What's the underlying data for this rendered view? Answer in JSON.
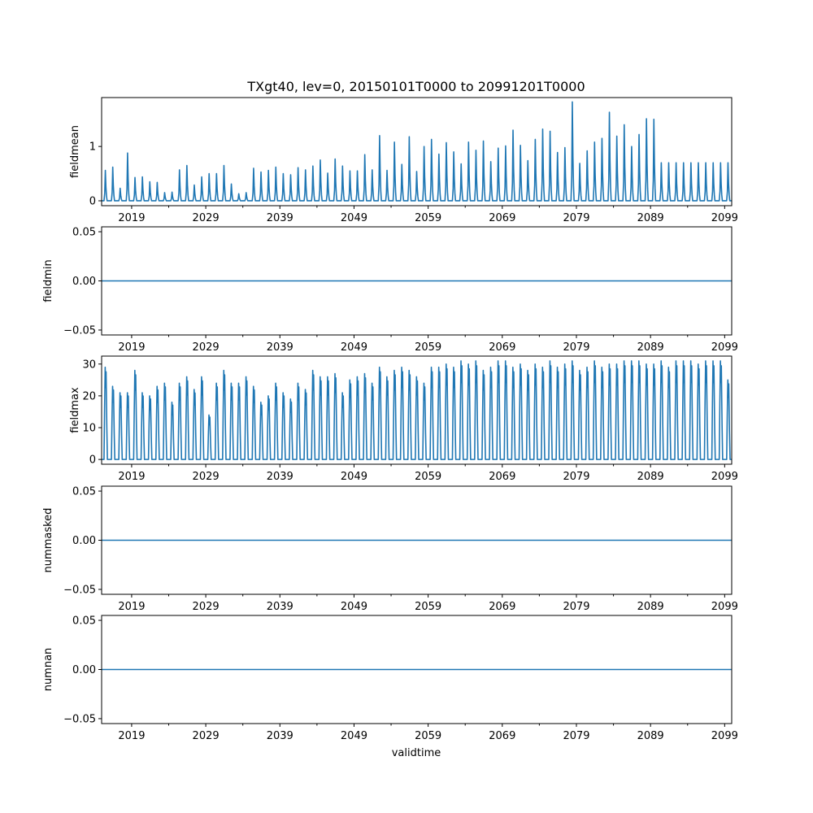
{
  "figure": {
    "title": "TXgt40, lev=0, 20150101T0000 to 20991201T0000",
    "xlabel": "validtime"
  },
  "colors": {
    "series": "#1f77b4",
    "axis": "#000000",
    "background": "#ffffff"
  },
  "chart_data": [
    {
      "type": "line",
      "ylabel": "fieldmean",
      "ylim": [
        -0.09,
        1.9
      ],
      "yticks": [
        0,
        1
      ],
      "ytick_labels": [
        "0",
        "1"
      ],
      "xlim": [
        2015.0,
        2100.0
      ],
      "xticks": [
        2019,
        2029,
        2039,
        2049,
        2059,
        2069,
        2079,
        2089,
        2099
      ],
      "xtick_labels": [
        "2019",
        "2029",
        "2039",
        "2049",
        "2059",
        "2069",
        "2079",
        "2089",
        "2099"
      ],
      "series": [
        {
          "name": "fieldmean",
          "pattern": "annual_summer_peaks",
          "baseline": 0,
          "years": [
            2015,
            2016,
            2017,
            2018,
            2019,
            2020,
            2021,
            2022,
            2023,
            2024,
            2025,
            2026,
            2027,
            2028,
            2029,
            2030,
            2031,
            2032,
            2033,
            2034,
            2035,
            2036,
            2037,
            2038,
            2039,
            2040,
            2041,
            2042,
            2043,
            2044,
            2045,
            2046,
            2047,
            2048,
            2049,
            2050,
            2051,
            2052,
            2053,
            2054,
            2055,
            2056,
            2057,
            2058,
            2059,
            2060,
            2061,
            2062,
            2063,
            2064,
            2065,
            2066,
            2067,
            2068,
            2069,
            2070,
            2071,
            2072,
            2073,
            2074,
            2075,
            2076,
            2077,
            2078,
            2079,
            2080,
            2081,
            2082,
            2083,
            2084,
            2085,
            2086,
            2087,
            2088,
            2089,
            2090,
            2091,
            2092,
            2093,
            2094,
            2095,
            2096,
            2097,
            2098,
            2099
          ],
          "peaks": [
            0.56,
            0.62,
            0.23,
            0.88,
            0.43,
            0.44,
            0.35,
            0.34,
            0.15,
            0.16,
            0.57,
            0.65,
            0.29,
            0.44,
            0.5,
            0.5,
            0.65,
            0.31,
            0.13,
            0.15,
            0.6,
            0.53,
            0.56,
            0.62,
            0.5,
            0.48,
            0.61,
            0.57,
            0.64,
            0.75,
            0.51,
            0.77,
            0.64,
            0.55,
            0.55,
            0.85,
            0.57,
            1.2,
            0.56,
            1.08,
            0.67,
            1.18,
            0.54,
            1.0,
            1.13,
            0.86,
            1.07,
            0.9,
            0.68,
            1.08,
            0.93,
            1.1,
            0.72,
            0.97,
            1.01,
            1.3,
            1.02,
            0.74,
            1.13,
            1.32,
            1.28,
            0.89,
            0.98,
            1.82,
            0.69,
            0.92,
            1.08,
            1.15,
            1.63,
            1.19,
            1.4,
            1.0,
            1.22,
            1.51,
            1.5,
            0.7,
            0.7,
            0.7,
            0.7,
            0.7,
            0.7,
            0.7,
            0.7,
            0.7,
            0.7
          ]
        }
      ]
    },
    {
      "type": "line",
      "ylabel": "fieldmin",
      "ylim": [
        -0.055,
        0.055
      ],
      "yticks": [
        -0.05,
        0.0,
        0.05
      ],
      "ytick_labels": [
        "−0.05",
        "0.00",
        "0.05"
      ],
      "xlim": [
        2015.0,
        2100.0
      ],
      "xticks": [
        2019,
        2029,
        2039,
        2049,
        2059,
        2069,
        2079,
        2089,
        2099
      ],
      "xtick_labels": [
        "2019",
        "2029",
        "2039",
        "2049",
        "2059",
        "2069",
        "2079",
        "2089",
        "2099"
      ],
      "series": [
        {
          "name": "fieldmin",
          "pattern": "constant",
          "value": 0.0
        }
      ]
    },
    {
      "type": "line",
      "ylabel": "fieldmax",
      "ylim": [
        -1.5,
        32.5
      ],
      "yticks": [
        0,
        10,
        20,
        30
      ],
      "ytick_labels": [
        "0",
        "10",
        "20",
        "30"
      ],
      "xlim": [
        2015.0,
        2100.0
      ],
      "xticks": [
        2019,
        2029,
        2039,
        2049,
        2059,
        2069,
        2079,
        2089,
        2099
      ],
      "xtick_labels": [
        "2019",
        "2029",
        "2039",
        "2049",
        "2059",
        "2069",
        "2079",
        "2089",
        "2099"
      ],
      "series": [
        {
          "name": "fieldmax",
          "pattern": "annual_summer_peaks",
          "baseline": 0,
          "years": [
            2015,
            2016,
            2017,
            2018,
            2019,
            2020,
            2021,
            2022,
            2023,
            2024,
            2025,
            2026,
            2027,
            2028,
            2029,
            2030,
            2031,
            2032,
            2033,
            2034,
            2035,
            2036,
            2037,
            2038,
            2039,
            2040,
            2041,
            2042,
            2043,
            2044,
            2045,
            2046,
            2047,
            2048,
            2049,
            2050,
            2051,
            2052,
            2053,
            2054,
            2055,
            2056,
            2057,
            2058,
            2059,
            2060,
            2061,
            2062,
            2063,
            2064,
            2065,
            2066,
            2067,
            2068,
            2069,
            2070,
            2071,
            2072,
            2073,
            2074,
            2075,
            2076,
            2077,
            2078,
            2079,
            2080,
            2081,
            2082,
            2083,
            2084,
            2085,
            2086,
            2087,
            2088,
            2089,
            2090,
            2091,
            2092,
            2093,
            2094,
            2095,
            2096,
            2097,
            2098,
            2099
          ],
          "peaks": [
            29,
            23,
            21,
            21,
            28,
            21,
            20,
            23,
            24,
            18,
            24,
            26,
            22,
            26,
            14,
            24,
            28,
            24,
            24,
            26,
            23,
            18,
            20,
            24,
            21,
            19,
            24,
            22,
            28,
            26,
            26,
            27,
            21,
            25,
            26,
            27,
            24,
            29,
            26,
            28,
            29,
            28,
            26,
            24,
            29,
            29,
            30,
            29,
            31,
            30,
            31,
            28,
            29,
            31,
            31,
            29,
            30,
            28,
            30,
            29,
            31,
            29,
            30,
            31,
            28,
            29,
            31,
            29,
            30,
            30,
            31,
            31,
            31,
            30,
            30,
            31,
            29,
            31,
            31,
            31,
            30,
            31,
            31,
            31,
            25
          ]
        }
      ]
    },
    {
      "type": "line",
      "ylabel": "nummasked",
      "ylim": [
        -0.055,
        0.055
      ],
      "yticks": [
        -0.05,
        0.0,
        0.05
      ],
      "ytick_labels": [
        "−0.05",
        "0.00",
        "0.05"
      ],
      "xlim": [
        2015.0,
        2100.0
      ],
      "xticks": [
        2019,
        2029,
        2039,
        2049,
        2059,
        2069,
        2079,
        2089,
        2099
      ],
      "xtick_labels": [
        "2019",
        "2029",
        "2039",
        "2049",
        "2059",
        "2069",
        "2079",
        "2089",
        "2099"
      ],
      "series": [
        {
          "name": "nummasked",
          "pattern": "constant",
          "value": 0.0
        }
      ]
    },
    {
      "type": "line",
      "ylabel": "numnan",
      "ylim": [
        -0.055,
        0.055
      ],
      "yticks": [
        -0.05,
        0.0,
        0.05
      ],
      "ytick_labels": [
        "−0.05",
        "0.00",
        "0.05"
      ],
      "xlim": [
        2015.0,
        2100.0
      ],
      "xticks": [
        2019,
        2029,
        2039,
        2049,
        2059,
        2069,
        2079,
        2089,
        2099
      ],
      "xtick_labels": [
        "2019",
        "2029",
        "2039",
        "2049",
        "2059",
        "2069",
        "2079",
        "2089",
        "2099"
      ],
      "series": [
        {
          "name": "numnan",
          "pattern": "constant",
          "value": 0.0
        }
      ]
    }
  ]
}
